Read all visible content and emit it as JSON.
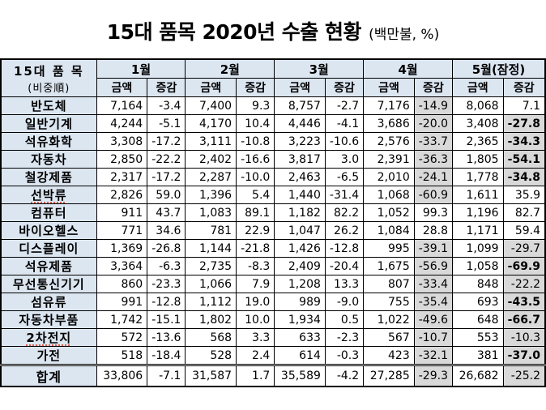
{
  "title": {
    "main": "15대 품목 2020년 수출 현황",
    "unit": "(백만불, %)"
  },
  "colors": {
    "header_bg": "#dce6f1",
    "negative_shade_bg": "#d9d9d9",
    "misspell_underline": "#e0584a",
    "border": "#000000"
  },
  "table": {
    "corner": {
      "line1": "15대  품 목",
      "line2": "(비중順)"
    },
    "months": [
      "1월",
      "2월",
      "3월",
      "4월",
      "5월(잠정)"
    ],
    "col_amount": "금액",
    "col_change": "증감",
    "rows": [
      {
        "item": "반도체",
        "underline": false,
        "may_bold": false,
        "is_total": false,
        "cells": [
          "7,164",
          "-3.4",
          "7,400",
          "9.3",
          "8,757",
          "-2.7",
          "7,176",
          "-14.9",
          "8,068",
          "7.1"
        ]
      },
      {
        "item": "일반기계",
        "underline": false,
        "may_bold": true,
        "is_total": false,
        "cells": [
          "4,244",
          "-5.1",
          "4,170",
          "10.4",
          "4,446",
          "-4.1",
          "3,686",
          "-20.0",
          "3,408",
          "-27.8"
        ]
      },
      {
        "item": "석유화학",
        "underline": false,
        "may_bold": true,
        "is_total": false,
        "cells": [
          "3,308",
          "-17.2",
          "3,111",
          "-10.8",
          "3,223",
          "-10.6",
          "2,576",
          "-33.7",
          "2,365",
          "-34.3"
        ]
      },
      {
        "item": "자동차",
        "underline": false,
        "may_bold": true,
        "is_total": false,
        "cells": [
          "2,850",
          "-22.2",
          "2,402",
          "-16.6",
          "3,817",
          "3.0",
          "2,391",
          "-36.3",
          "1,805",
          "-54.1"
        ]
      },
      {
        "item": "철강제품",
        "underline": false,
        "may_bold": true,
        "is_total": false,
        "cells": [
          "2,317",
          "-17.2",
          "2,287",
          "-10.0",
          "2,463",
          "-6.5",
          "2,010",
          "-24.1",
          "1,778",
          "-34.8"
        ]
      },
      {
        "item": "선박류",
        "underline": true,
        "may_bold": false,
        "is_total": false,
        "cells": [
          "2,826",
          "59.0",
          "1,396",
          "5.4",
          "1,440",
          "-31.4",
          "1,068",
          "-60.9",
          "1,611",
          "35.9"
        ]
      },
      {
        "item": "컴퓨터",
        "underline": false,
        "may_bold": false,
        "is_total": false,
        "cells": [
          "911",
          "43.7",
          "1,083",
          "89.1",
          "1,182",
          "82.2",
          "1,052",
          "99.3",
          "1,196",
          "82.7"
        ]
      },
      {
        "item": "바이오헬스",
        "underline": false,
        "may_bold": false,
        "is_total": false,
        "cells": [
          "771",
          "34.6",
          "781",
          "22.9",
          "1,047",
          "26.2",
          "1,084",
          "28.8",
          "1,171",
          "59.4"
        ]
      },
      {
        "item": "디스플레이",
        "underline": false,
        "may_bold": false,
        "is_total": false,
        "cells": [
          "1,369",
          "-26.8",
          "1,144",
          "-21.8",
          "1,426",
          "-12.8",
          "995",
          "-39.1",
          "1,099",
          "-29.7"
        ]
      },
      {
        "item": "석유제품",
        "underline": false,
        "may_bold": true,
        "is_total": false,
        "cells": [
          "3,364",
          "-6.3",
          "2,735",
          "-8.3",
          "2,409",
          "-20.4",
          "1,675",
          "-56.9",
          "1,058",
          "-69.9"
        ]
      },
      {
        "item": "무선통신기기",
        "underline": false,
        "may_bold": false,
        "is_total": false,
        "cells": [
          "860",
          "-23.3",
          "1,066",
          "7.9",
          "1,208",
          "13.3",
          "807",
          "-33.4",
          "848",
          "-22.2"
        ]
      },
      {
        "item": "섬유류",
        "underline": false,
        "may_bold": true,
        "is_total": false,
        "cells": [
          "991",
          "-12.8",
          "1,112",
          "19.0",
          "989",
          "-9.0",
          "755",
          "-35.4",
          "693",
          "-43.5"
        ]
      },
      {
        "item": "자동차부품",
        "underline": false,
        "may_bold": true,
        "is_total": false,
        "cells": [
          "1,742",
          "-15.1",
          "1,802",
          "10.0",
          "1,934",
          "0.5",
          "1,022",
          "-49.6",
          "648",
          "-66.7"
        ]
      },
      {
        "item": "2차전지",
        "underline": true,
        "may_bold": false,
        "is_total": false,
        "cells": [
          "572",
          "-13.6",
          "568",
          "3.3",
          "633",
          "-2.3",
          "567",
          "-10.7",
          "553",
          "-10.3"
        ]
      },
      {
        "item": "가전",
        "underline": false,
        "may_bold": true,
        "is_total": false,
        "cells": [
          "518",
          "-18.4",
          "528",
          "2.4",
          "614",
          "-0.3",
          "423",
          "-32.1",
          "381",
          "-37.0"
        ]
      },
      {
        "item": "합계",
        "underline": false,
        "may_bold": false,
        "is_total": true,
        "cells": [
          "33,806",
          "-7.1",
          "31,587",
          "1.7",
          "35,589",
          "-4.2",
          "27,285",
          "-29.3",
          "26,682",
          "-25.2"
        ]
      }
    ]
  }
}
